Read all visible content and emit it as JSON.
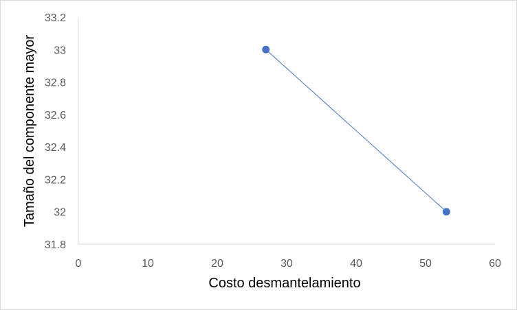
{
  "chart_data": {
    "type": "scatter",
    "title": "",
    "xlabel": "Costo desmantelamiento",
    "ylabel": "Tamaño del componente mayor",
    "xlim": [
      0,
      60
    ],
    "ylim": [
      31.8,
      33.2
    ],
    "x_ticks": [
      "0",
      "10",
      "20",
      "30",
      "40",
      "50",
      "60"
    ],
    "y_ticks": [
      "31.8",
      "32",
      "32.2",
      "32.4",
      "32.6",
      "32.8",
      "33",
      "33.2"
    ],
    "series": [
      {
        "x": [
          27,
          53
        ],
        "y": [
          33,
          32
        ],
        "connected": true
      }
    ],
    "grid": false,
    "legend": "none",
    "colors": {
      "marker": "#4472C4",
      "line": "#4472C4",
      "axis": "#d9d9d9"
    }
  }
}
